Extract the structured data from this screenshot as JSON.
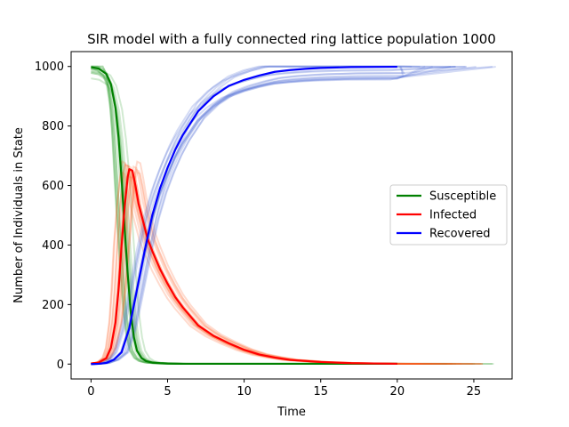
{
  "chart_data": {
    "type": "line",
    "title": "SIR model with a fully connected ring lattice population 1000",
    "xlabel": "Time",
    "ylabel": "Number of Individuals in State",
    "xlim": [
      -1.3,
      27.5
    ],
    "ylim": [
      -50,
      1050
    ],
    "xticks": [
      0,
      5,
      10,
      15,
      20,
      25
    ],
    "yticks": [
      0,
      200,
      400,
      600,
      800,
      1000
    ],
    "grid": false,
    "legend_position": "center-right",
    "series": [
      {
        "name": "Susceptible",
        "color": "#008000",
        "x": [
          0,
          0.5,
          1.0,
          1.3,
          1.6,
          1.8,
          2.0,
          2.2,
          2.4,
          2.6,
          2.8,
          3.0,
          3.3,
          3.6,
          4.0,
          4.5,
          5.0,
          6.0,
          8.0,
          10.0,
          15.0,
          20.0
        ],
        "values": [
          998,
          993,
          975,
          940,
          860,
          760,
          620,
          450,
          300,
          170,
          90,
          45,
          20,
          10,
          5,
          3,
          2,
          1,
          1,
          1,
          1,
          1
        ]
      },
      {
        "name": "Infected",
        "color": "#ff0000",
        "x": [
          0,
          0.5,
          1.0,
          1.3,
          1.6,
          1.8,
          2.0,
          2.2,
          2.4,
          2.5,
          2.7,
          2.9,
          3.1,
          3.4,
          3.7,
          4.0,
          4.5,
          5.0,
          5.5,
          6.0,
          7.0,
          8.0,
          9.0,
          10.0,
          11.0,
          12.0,
          13.0,
          15.0,
          17.0,
          20.0
        ],
        "values": [
          2,
          5,
          20,
          55,
          140,
          250,
          400,
          530,
          630,
          655,
          650,
          600,
          540,
          480,
          420,
          380,
          320,
          270,
          225,
          190,
          130,
          95,
          70,
          48,
          32,
          22,
          14,
          7,
          3,
          1
        ]
      },
      {
        "name": "Recovered",
        "color": "#0000ff",
        "x": [
          0,
          0.5,
          1.0,
          1.5,
          2.0,
          2.5,
          3.0,
          3.5,
          4.0,
          4.5,
          5.0,
          5.5,
          6.0,
          7.0,
          8.0,
          9.0,
          10.0,
          11.0,
          12.0,
          13.0,
          14.0,
          15.0,
          17.0,
          20.0
        ],
        "values": [
          0,
          1,
          4,
          15,
          40,
          120,
          250,
          380,
          500,
          590,
          660,
          720,
          770,
          850,
          900,
          935,
          955,
          970,
          982,
          988,
          992,
          995,
          998,
          999
        ]
      }
    ]
  }
}
